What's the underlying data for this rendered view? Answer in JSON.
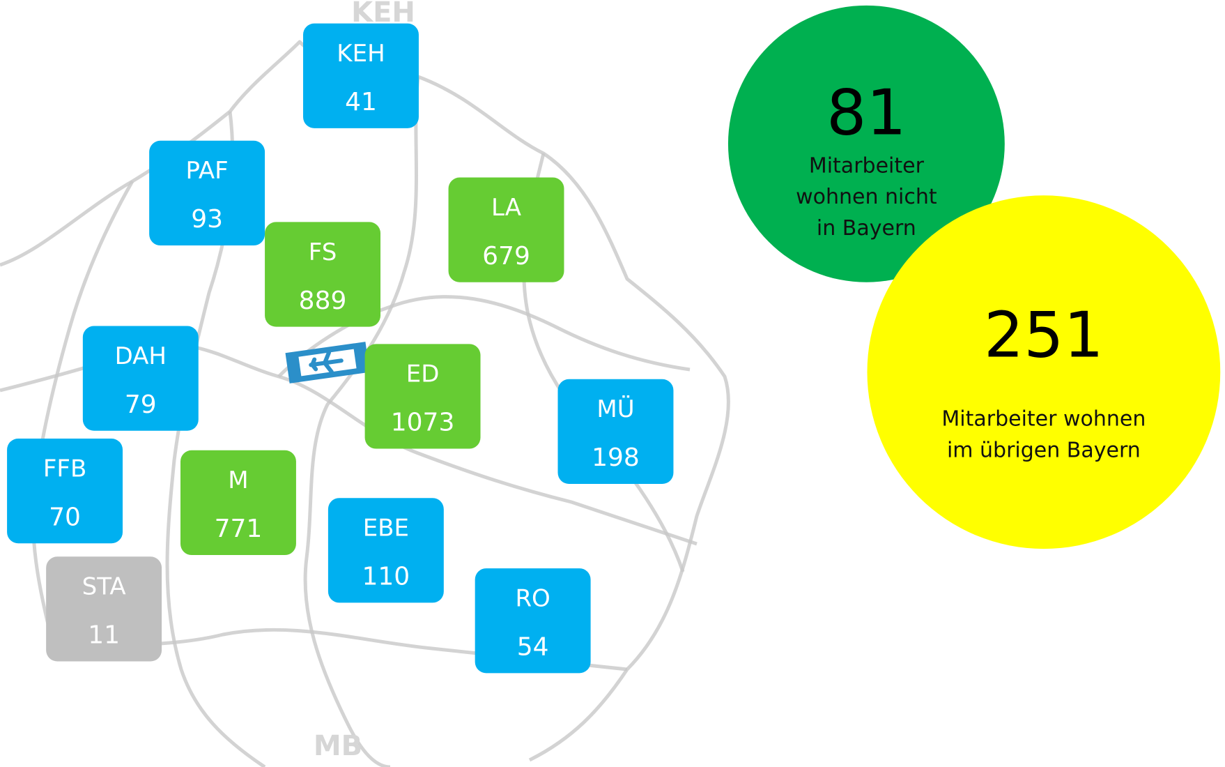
{
  "background_labels": [
    "KEH",
    "MB"
  ],
  "districts": [
    {
      "code": "KEH",
      "value": 41,
      "color": "#00b0f0"
    },
    {
      "code": "PAF",
      "value": 93,
      "color": "#00b0f0"
    },
    {
      "code": "FS",
      "value": 889,
      "color": "#66cc33"
    },
    {
      "code": "LA",
      "value": 679,
      "color": "#66cc33"
    },
    {
      "code": "DAH",
      "value": 79,
      "color": "#00b0f0"
    },
    {
      "code": "ED",
      "value": 1073,
      "color": "#66cc33"
    },
    {
      "code": "MÜ",
      "value": 198,
      "color": "#00b0f0"
    },
    {
      "code": "FFB",
      "value": 70,
      "color": "#00b0f0"
    },
    {
      "code": "M",
      "value": 771,
      "color": "#66cc33"
    },
    {
      "code": "EBE",
      "value": 110,
      "color": "#00b0f0"
    },
    {
      "code": "RO",
      "value": 54,
      "color": "#00b0f0"
    },
    {
      "code": "STA",
      "value": 11,
      "color": "#bfbfbf"
    }
  ],
  "summary": [
    {
      "value": 81,
      "lines": [
        "Mitarbeiter",
        "wohnen nicht",
        "in Bayern"
      ],
      "color": "#00b050"
    },
    {
      "value": 251,
      "lines": [
        "Mitarbeiter wohnen",
        "im übrigen Bayern"
      ],
      "color": "#ffff00"
    }
  ]
}
